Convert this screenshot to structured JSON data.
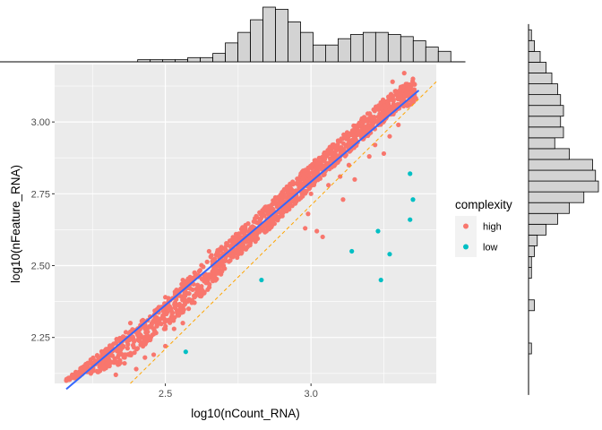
{
  "chart_data": {
    "type": "scatter",
    "xlabel": "log10(nCount_RNA)",
    "ylabel": "log10(nFeature_RNA)",
    "xlim": [
      2.12,
      3.43
    ],
    "ylim": [
      2.09,
      3.2
    ],
    "x_ticks": [
      2.5,
      3.0
    ],
    "x_tick_labels": [
      "2.5",
      "3.0"
    ],
    "y_ticks": [
      2.25,
      2.5,
      2.75,
      3.0
    ],
    "y_tick_labels": [
      "2.25",
      "2.50",
      "2.75",
      "3.00"
    ],
    "grid": true,
    "legend": {
      "title": "complexity",
      "placement": "right",
      "entries": [
        {
          "label": "high",
          "color": "#F8766D"
        },
        {
          "label": "low",
          "color": "#00BFC4"
        }
      ]
    },
    "series": [
      {
        "name": "high",
        "color": "#F8766D",
        "trend_points": [
          [
            2.16,
            2.07
          ],
          [
            2.24,
            2.12
          ],
          [
            2.35,
            2.2
          ],
          [
            2.45,
            2.28
          ],
          [
            2.55,
            2.37
          ],
          [
            2.65,
            2.47
          ],
          [
            2.75,
            2.57
          ],
          [
            2.85,
            2.66
          ],
          [
            2.95,
            2.76
          ],
          [
            3.05,
            2.86
          ],
          [
            3.15,
            2.95
          ],
          [
            3.25,
            3.04
          ],
          [
            3.3,
            3.08
          ],
          [
            3.36,
            3.12
          ]
        ],
        "upper_points": [
          [
            2.16,
            2.11
          ],
          [
            2.24,
            2.17
          ],
          [
            2.35,
            2.26
          ],
          [
            2.45,
            2.33
          ],
          [
            2.55,
            2.43
          ],
          [
            2.65,
            2.53
          ],
          [
            2.75,
            2.62
          ],
          [
            2.85,
            2.71
          ],
          [
            2.95,
            2.81
          ],
          [
            3.05,
            2.9
          ],
          [
            3.15,
            2.99
          ],
          [
            3.25,
            3.08
          ],
          [
            3.3,
            3.12
          ],
          [
            3.36,
            3.15
          ]
        ],
        "lower_points": [
          [
            2.16,
            2.1
          ],
          [
            2.24,
            2.12
          ],
          [
            2.35,
            2.16
          ],
          [
            2.45,
            2.24
          ],
          [
            2.55,
            2.32
          ],
          [
            2.65,
            2.42
          ],
          [
            2.75,
            2.53
          ],
          [
            2.85,
            2.62
          ],
          [
            2.95,
            2.72
          ],
          [
            3.05,
            2.82
          ],
          [
            3.15,
            2.91
          ],
          [
            3.25,
            3.0
          ],
          [
            3.3,
            3.04
          ],
          [
            3.36,
            3.07
          ]
        ],
        "scattered_points": [
          [
            2.16,
            2.1
          ],
          [
            2.18,
            2.11
          ],
          [
            2.2,
            2.12
          ],
          [
            2.22,
            2.13
          ],
          [
            2.25,
            2.15
          ],
          [
            2.27,
            2.13
          ],
          [
            2.3,
            2.16
          ],
          [
            2.33,
            2.12
          ],
          [
            2.36,
            2.16
          ],
          [
            2.4,
            2.14
          ],
          [
            2.43,
            2.18
          ],
          [
            2.46,
            2.19
          ],
          [
            2.5,
            2.22
          ],
          [
            2.53,
            2.28
          ],
          [
            2.56,
            2.3
          ],
          [
            2.58,
            2.35
          ],
          [
            2.6,
            2.39
          ],
          [
            2.62,
            2.41
          ],
          [
            2.64,
            2.44
          ],
          [
            2.7,
            2.5
          ],
          [
            2.75,
            2.55
          ],
          [
            2.8,
            2.6
          ],
          [
            2.84,
            2.64
          ],
          [
            2.9,
            2.7
          ],
          [
            2.98,
            2.76
          ],
          [
            3.05,
            2.83
          ],
          [
            3.1,
            2.88
          ],
          [
            3.18,
            2.95
          ],
          [
            2.38,
            2.3
          ],
          [
            2.5,
            2.39
          ],
          [
            2.56,
            2.45
          ],
          [
            2.65,
            2.55
          ],
          [
            3.28,
            3.14
          ],
          [
            3.32,
            3.17
          ],
          [
            3.35,
            3.15
          ],
          [
            3.22,
            2.92
          ],
          [
            3.27,
            2.95
          ],
          [
            3.3,
            2.99
          ],
          [
            3.25,
            2.89
          ],
          [
            2.85,
            2.65
          ],
          [
            2.88,
            2.67
          ],
          [
            2.99,
            2.68
          ],
          [
            2.98,
            2.63
          ],
          [
            3.02,
            2.62
          ],
          [
            3.04,
            2.6
          ],
          [
            3.11,
            2.73
          ],
          [
            3.15,
            2.8
          ],
          [
            3.1,
            2.81
          ],
          [
            3.13,
            2.85
          ],
          [
            3.2,
            2.88
          ],
          [
            3.06,
            2.78
          ],
          [
            3.0,
            2.75
          ]
        ]
      },
      {
        "name": "low",
        "color": "#00BFC4",
        "points": [
          [
            2.57,
            2.2
          ],
          [
            2.83,
            2.45
          ],
          [
            3.14,
            2.55
          ],
          [
            3.23,
            2.62
          ],
          [
            3.24,
            2.45
          ],
          [
            3.27,
            2.54
          ],
          [
            3.34,
            2.66
          ],
          [
            3.34,
            2.82
          ],
          [
            3.35,
            2.73
          ]
        ]
      }
    ],
    "smooth_line": {
      "color": "#3366FF",
      "x": [
        2.16,
        3.37
      ],
      "y": [
        2.07,
        3.11
      ]
    },
    "reference_line": {
      "color": "#FFA500",
      "slope": 1,
      "intercept": -0.29
    },
    "top_histogram": {
      "bin_edges_start": 2.19,
      "bin_width": 0.043,
      "counts": [
        0,
        0,
        0,
        0,
        0,
        1,
        1,
        1,
        1,
        2,
        2,
        4,
        9,
        14,
        20,
        26,
        25,
        19,
        14,
        8,
        8,
        11,
        13,
        14,
        14,
        13,
        12,
        10,
        7,
        5
      ]
    },
    "right_histogram": {
      "bin_edges_start": 2.08,
      "bin_width": 0.0376,
      "counts": [
        0,
        0,
        0,
        1,
        0,
        0,
        0,
        2,
        0,
        0,
        1,
        1,
        2,
        3,
        6,
        10,
        14,
        19,
        24,
        23,
        22,
        14,
        9,
        12,
        11,
        12,
        11,
        10,
        8,
        6,
        4,
        2,
        1
      ]
    }
  }
}
